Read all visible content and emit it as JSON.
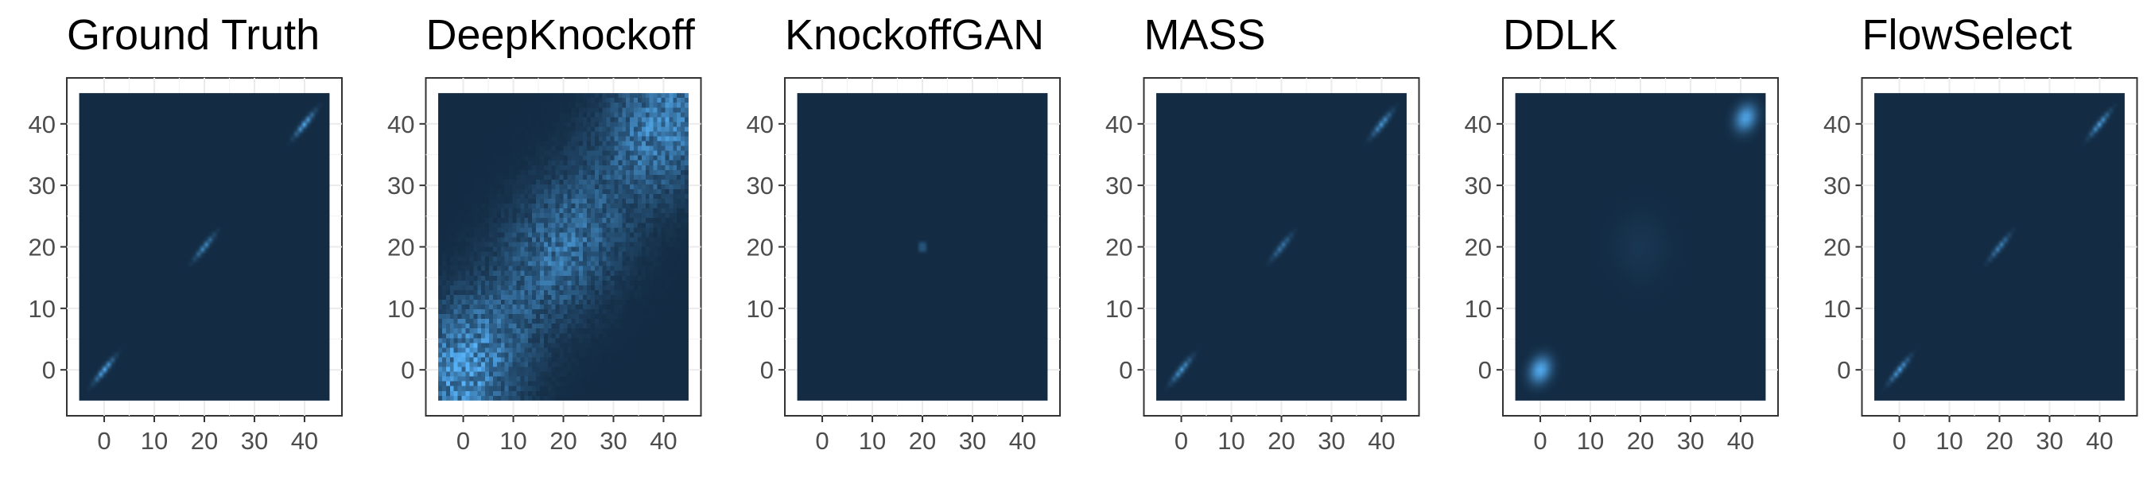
{
  "chart_data": [
    {
      "type": "heatmap",
      "title": "Ground Truth",
      "xlabel": "",
      "ylabel": "",
      "xlim": [
        -5,
        45
      ],
      "ylim": [
        -5,
        45
      ],
      "xticks": [
        0,
        10,
        20,
        30,
        40
      ],
      "yticks": [
        0,
        10,
        20,
        30,
        40
      ],
      "grid": true,
      "legend": "none",
      "background_color": "#132b43",
      "high_color": "#56b1f7",
      "density": [
        {
          "x": 0,
          "y": 0,
          "sx": 1.3,
          "sy": 1.3,
          "rho": 0.95,
          "weight": 1.0
        },
        {
          "x": 20,
          "y": 20,
          "sx": 1.3,
          "sy": 1.3,
          "rho": 0.95,
          "weight": 0.75
        },
        {
          "x": 40,
          "y": 40,
          "sx": 1.3,
          "sy": 1.3,
          "rho": 0.95,
          "weight": 1.0
        }
      ]
    },
    {
      "type": "heatmap",
      "title": "DeepKnockoff",
      "xlabel": "",
      "ylabel": "",
      "xlim": [
        -5,
        45
      ],
      "ylim": [
        -5,
        45
      ],
      "xticks": [
        0,
        10,
        20,
        30,
        40
      ],
      "yticks": [
        0,
        10,
        20,
        30,
        40
      ],
      "grid": true,
      "legend": "none",
      "background_color": "#132b43",
      "high_color": "#56b1f7",
      "density": [
        {
          "x": 0,
          "y": 0,
          "sx": 8,
          "sy": 8,
          "rho": 0.3,
          "weight": 0.9
        },
        {
          "x": 20,
          "y": 20,
          "sx": 8,
          "sy": 8,
          "rho": 0.3,
          "weight": 0.6
        },
        {
          "x": 40,
          "y": 40,
          "sx": 8,
          "sy": 8,
          "rho": 0.3,
          "weight": 0.75
        }
      ]
    },
    {
      "type": "heatmap",
      "title": "KnockoffGAN",
      "xlabel": "",
      "ylabel": "",
      "xlim": [
        -5,
        45
      ],
      "ylim": [
        -5,
        45
      ],
      "xticks": [
        0,
        10,
        20,
        30,
        40
      ],
      "yticks": [
        0,
        10,
        20,
        30,
        40
      ],
      "grid": true,
      "legend": "none",
      "background_color": "#132b43",
      "high_color": "#56b1f7",
      "density": [
        {
          "x": 20,
          "y": 20,
          "sx": 0.35,
          "sy": 0.35,
          "rho": 0,
          "weight": 1.0
        }
      ]
    },
    {
      "type": "heatmap",
      "title": "MASS",
      "xlabel": "",
      "ylabel": "",
      "xlim": [
        -5,
        45
      ],
      "ylim": [
        -5,
        45
      ],
      "xticks": [
        0,
        10,
        20,
        30,
        40
      ],
      "yticks": [
        0,
        10,
        20,
        30,
        40
      ],
      "grid": true,
      "legend": "none",
      "background_color": "#132b43",
      "high_color": "#56b1f7",
      "density": [
        {
          "x": 0,
          "y": 0,
          "sx": 1.3,
          "sy": 1.3,
          "rho": 0.94,
          "weight": 0.85
        },
        {
          "x": 20,
          "y": 20,
          "sx": 1.3,
          "sy": 1.3,
          "rho": 0.94,
          "weight": 0.6
        },
        {
          "x": 40,
          "y": 40,
          "sx": 1.3,
          "sy": 1.3,
          "rho": 0.94,
          "weight": 0.85
        }
      ]
    },
    {
      "type": "heatmap",
      "title": "DDLK",
      "xlabel": "",
      "ylabel": "",
      "xlim": [
        -5,
        45
      ],
      "ylim": [
        -5,
        45
      ],
      "xticks": [
        0,
        10,
        20,
        30,
        40
      ],
      "yticks": [
        0,
        10,
        20,
        30,
        40
      ],
      "grid": true,
      "legend": "none",
      "background_color": "#132b43",
      "high_color": "#56b1f7",
      "density": [
        {
          "x": 0,
          "y": 0,
          "sx": 1.5,
          "sy": 1.5,
          "rho": 0.2,
          "weight": 0.95
        },
        {
          "x": 20,
          "y": 20,
          "sx": 4,
          "sy": 4,
          "rho": 0,
          "weight": 0.08
        },
        {
          "x": 41,
          "y": 41,
          "sx": 1.5,
          "sy": 1.5,
          "rho": 0.2,
          "weight": 0.9
        }
      ]
    },
    {
      "type": "heatmap",
      "title": "FlowSelect",
      "xlabel": "",
      "ylabel": "",
      "xlim": [
        -5,
        45
      ],
      "ylim": [
        -5,
        45
      ],
      "xticks": [
        0,
        10,
        20,
        30,
        40
      ],
      "yticks": [
        0,
        10,
        20,
        30,
        40
      ],
      "grid": true,
      "legend": "none",
      "background_color": "#132b43",
      "high_color": "#56b1f7",
      "density": [
        {
          "x": 0,
          "y": 0,
          "sx": 1.3,
          "sy": 1.3,
          "rho": 0.95,
          "weight": 0.9
        },
        {
          "x": 20,
          "y": 20,
          "sx": 1.3,
          "sy": 1.3,
          "rho": 0.95,
          "weight": 0.7
        },
        {
          "x": 40,
          "y": 40,
          "sx": 1.3,
          "sy": 1.3,
          "rho": 0.95,
          "weight": 0.9
        }
      ]
    }
  ]
}
